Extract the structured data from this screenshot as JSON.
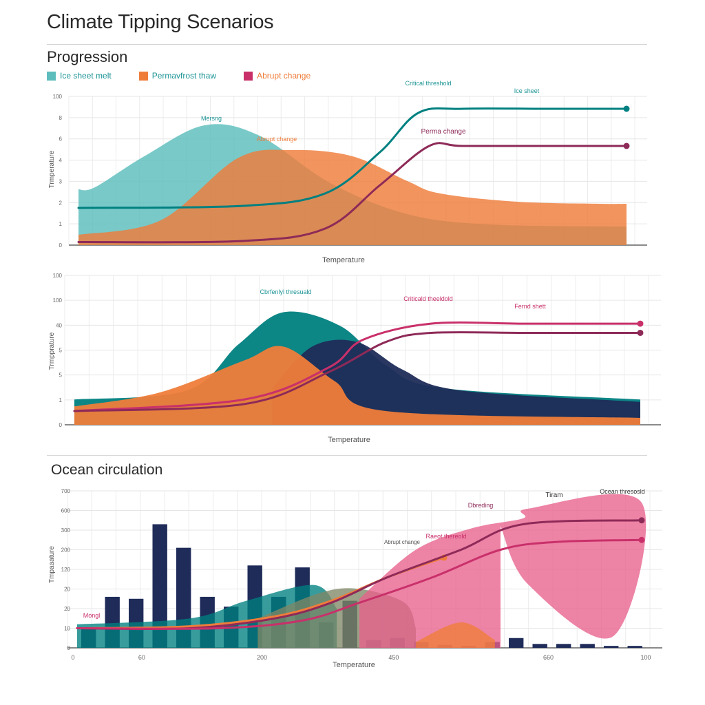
{
  "title": "Climate Tipping Scenarios",
  "section_progression": "Progression",
  "section_ocean": "Ocean circulation",
  "colors": {
    "teal_fill": "#5cbdbc",
    "teal_line": "#1e9496",
    "orange": "#ef7d3a",
    "magenta": "#c9306a",
    "plum": "#8e2a58",
    "navy": "#1f2c59",
    "pink": "#e8608c",
    "olive": "#7f8866"
  },
  "legend": [
    {
      "label": "Ice sheet melt",
      "color": "#5cbdbc",
      "text_color": "#1e9496"
    },
    {
      "label": "Permavfrost thaw",
      "color": "#ef7d3a",
      "text_color": "#1e9496"
    },
    {
      "label": "Abrupt change",
      "color": "#c9306a",
      "text_color": "#ef7d3a"
    }
  ],
  "chart_data": [
    {
      "type": "area",
      "xlabel": "Temperature",
      "ylabel": "Trmperature",
      "y_ticks": [
        "0",
        "1",
        "2",
        "3",
        "4",
        "6",
        "8",
        "100"
      ],
      "grid": true,
      "series": [
        {
          "name": "Ice sheet melt",
          "kind": "area",
          "points": [
            [
              0,
              2.7
            ],
            [
              0.03,
              2.8
            ],
            [
              0.12,
              4.3
            ],
            [
              0.23,
              5.8
            ],
            [
              0.33,
              5.3
            ],
            [
              0.46,
              3
            ],
            [
              0.6,
              1.5
            ],
            [
              0.75,
              1
            ],
            [
              1,
              0.9
            ]
          ]
        },
        {
          "name": "Permavfrost thaw",
          "kind": "area",
          "points": [
            [
              0,
              0.5
            ],
            [
              0.15,
              1.2
            ],
            [
              0.29,
              4.2
            ],
            [
              0.39,
              4.6
            ],
            [
              0.5,
              4.3
            ],
            [
              0.6,
              3.1
            ],
            [
              0.66,
              2.5
            ],
            [
              0.8,
              2.1
            ],
            [
              0.95,
              2
            ],
            [
              1,
              2
            ]
          ]
        },
        {
          "kind": "line",
          "color": "teal",
          "points": [
            [
              0,
              1.8
            ],
            [
              0.3,
              1.9
            ],
            [
              0.45,
              2.5
            ],
            [
              0.55,
              4.5
            ],
            [
              0.62,
              6.4
            ],
            [
              0.7,
              6.6
            ],
            [
              0.85,
              6.6
            ],
            [
              1,
              6.6
            ]
          ]
        },
        {
          "kind": "line",
          "color": "plum",
          "points": [
            [
              0,
              0.15
            ],
            [
              0.3,
              0.2
            ],
            [
              0.45,
              0.8
            ],
            [
              0.55,
              2.9
            ],
            [
              0.64,
              4.8
            ],
            [
              0.7,
              4.8
            ],
            [
              0.85,
              4.8
            ],
            [
              1,
              4.8
            ]
          ]
        }
      ],
      "annotations": [
        "Mersng",
        "Abrupt change",
        "Critical threshold",
        "Ice sheet",
        "Perma change"
      ]
    },
    {
      "type": "area",
      "xlabel": "Temperature",
      "ylabel": "Trmpprature",
      "y_ticks": [
        "0",
        "1",
        "5",
        "5",
        "40",
        "100",
        "100"
      ],
      "grid": true,
      "series": [
        {
          "kind": "area",
          "color": "teal",
          "points": [
            [
              0,
              1.1
            ],
            [
              0.2,
              1.5
            ],
            [
              0.29,
              3.5
            ],
            [
              0.37,
              4.9
            ],
            [
              0.47,
              4.3
            ],
            [
              0.55,
              2.6
            ],
            [
              0.65,
              1.6
            ],
            [
              1,
              1.1
            ]
          ]
        },
        {
          "kind": "area",
          "color": "navy",
          "points": [
            [
              0.35,
              1.6
            ],
            [
              0.42,
              3.4
            ],
            [
              0.5,
              3.6
            ],
            [
              0.58,
              2.4
            ],
            [
              0.68,
              1.5
            ],
            [
              1,
              1
            ]
          ]
        },
        {
          "kind": "area",
          "color": "orange",
          "points": [
            [
              0,
              0.8
            ],
            [
              0.15,
              1.4
            ],
            [
              0.3,
              2.8
            ],
            [
              0.37,
              3.4
            ],
            [
              0.46,
              1.9
            ],
            [
              0.55,
              0.6
            ],
            [
              1,
              0.3
            ]
          ]
        },
        {
          "kind": "line",
          "color": "magenta",
          "points": [
            [
              0,
              0.6
            ],
            [
              0.3,
              1.1
            ],
            [
              0.45,
              2.5
            ],
            [
              0.51,
              3.7
            ],
            [
              0.63,
              4.4
            ],
            [
              0.8,
              4.4
            ],
            [
              1,
              4.4
            ]
          ]
        },
        {
          "kind": "line",
          "color": "plum",
          "points": [
            [
              0,
              0.6
            ],
            [
              0.3,
              0.9
            ],
            [
              0.45,
              2.3
            ],
            [
              0.55,
              3.6
            ],
            [
              0.63,
              4
            ],
            [
              0.8,
              4
            ],
            [
              1,
              4
            ]
          ]
        }
      ],
      "annotations": [
        "Cbrfenlyl thresuald",
        "Criticald theeldold",
        "Fernd shett"
      ]
    },
    {
      "type": "bar",
      "xlabel": "Temperature",
      "ylabel": "Tmpaaature",
      "x_ticks": [
        "0",
        "60",
        "200",
        "450",
        "660",
        "100"
      ],
      "y_ticks": [
        "0",
        "10",
        "20",
        "20",
        "120",
        "200",
        "300",
        "600",
        "700"
      ],
      "grid": true,
      "bars": [
        1,
        2.6,
        2.5,
        6.3,
        5.1,
        2.6,
        2.1,
        4.2,
        2.6,
        4.1,
        1.3,
        2.4,
        0.4,
        0.5,
        0.3,
        0.15,
        0.1,
        0.3,
        0.5,
        0.2,
        0.2,
        0.2,
        0.1,
        0.1
      ],
      "series": [
        {
          "kind": "area",
          "color": "teal",
          "points": [
            [
              0,
              1.2
            ],
            [
              0.2,
              1.5
            ],
            [
              0.3,
              2.4
            ],
            [
              0.42,
              3.2
            ],
            [
              0.46,
              2
            ]
          ]
        },
        {
          "kind": "area",
          "color": "olive",
          "points": [
            [
              0.32,
              1.5
            ],
            [
              0.43,
              2.8
            ],
            [
              0.5,
              3
            ],
            [
              0.58,
              2.3
            ],
            [
              0.6,
              1
            ]
          ]
        },
        {
          "kind": "area",
          "color": "pink",
          "points": [
            [
              0.5,
              2.5
            ],
            [
              0.6,
              5
            ],
            [
              0.7,
              6.1
            ],
            [
              0.79,
              6.6
            ],
            [
              0.8,
              7.1
            ],
            [
              1,
              7.4
            ],
            [
              0.95,
              0.6
            ],
            [
              0.8,
              3.2
            ],
            [
              0.75,
              6.2
            ]
          ]
        },
        {
          "kind": "area",
          "color": "orange",
          "points": [
            [
              0.6,
              0.3
            ],
            [
              0.68,
              1.3
            ],
            [
              0.74,
              0.4
            ]
          ]
        },
        {
          "kind": "line",
          "color": "orange",
          "points": [
            [
              0,
              1
            ],
            [
              0.2,
              1.1
            ],
            [
              0.35,
              1.6
            ],
            [
              0.45,
              2.4
            ],
            [
              0.55,
              3.6
            ],
            [
              0.65,
              4.6
            ]
          ]
        },
        {
          "kind": "line",
          "color": "plum",
          "points": [
            [
              0,
              1
            ],
            [
              0.2,
              1
            ],
            [
              0.35,
              1.5
            ],
            [
              0.45,
              2.3
            ],
            [
              0.55,
              3.6
            ],
            [
              0.68,
              5
            ],
            [
              0.79,
              6.3
            ],
            [
              1,
              6.5
            ]
          ]
        },
        {
          "kind": "line",
          "color": "magenta",
          "points": [
            [
              0,
              1
            ],
            [
              0.25,
              1
            ],
            [
              0.4,
              1.4
            ],
            [
              0.5,
              2.3
            ],
            [
              0.63,
              3.6
            ],
            [
              0.75,
              5
            ],
            [
              0.85,
              5.4
            ],
            [
              1,
              5.5
            ]
          ]
        }
      ],
      "annotations": [
        "Mongl",
        "Abrupt change",
        "Raeot thereold",
        "Dbreding",
        "Tiram",
        "Ocean thresosld"
      ]
    }
  ]
}
